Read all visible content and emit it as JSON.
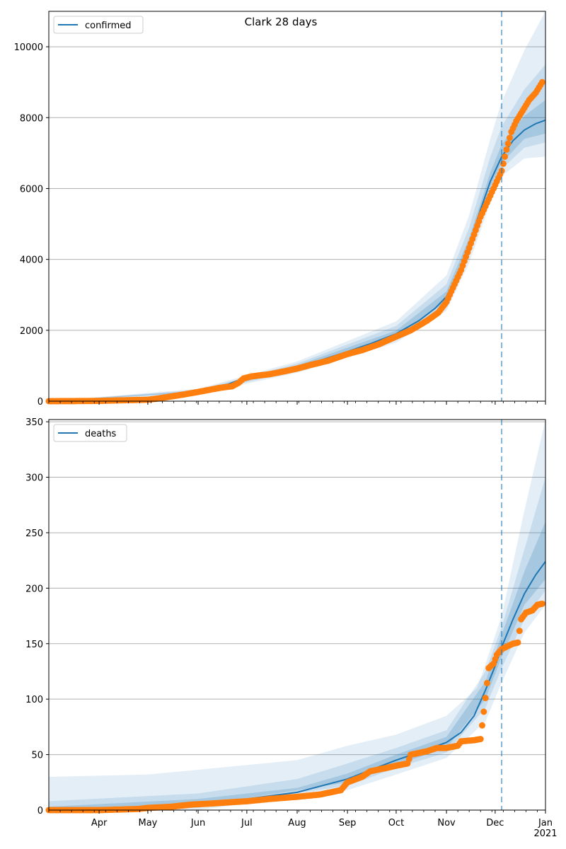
{
  "title": "Clark 28 days",
  "colors": {
    "model": "#1f77b4",
    "band": "#1f77b4",
    "observed": "#ff7f0e",
    "grid": "#b0b0b0",
    "vline": "#1f77b4"
  },
  "x_axis": {
    "start": "2020-03-01",
    "end": "2021-01-01",
    "month_ticks": [
      {
        "label": "Apr",
        "date": "2020-04-01"
      },
      {
        "label": "May",
        "date": "2020-05-01"
      },
      {
        "label": "Jun",
        "date": "2020-06-01"
      },
      {
        "label": "Jul",
        "date": "2020-07-01"
      },
      {
        "label": "Aug",
        "date": "2020-08-01"
      },
      {
        "label": "Sep",
        "date": "2020-09-01"
      },
      {
        "label": "Oct",
        "date": "2020-10-01"
      },
      {
        "label": "Nov",
        "date": "2020-11-01"
      },
      {
        "label": "Dec",
        "date": "2020-12-01"
      },
      {
        "label": "Jan",
        "date": "2021-01-01"
      }
    ],
    "year_label": "2021",
    "forecast_date": "2020-12-05"
  },
  "chart_data": [
    {
      "type": "line",
      "legend": "confirmed",
      "legend_position": "top-left",
      "grid": "y",
      "ylim": [
        0,
        11000
      ],
      "yticks": [
        0,
        2000,
        4000,
        6000,
        8000,
        10000
      ],
      "model_line": [
        [
          "2020-03-01",
          0
        ],
        [
          "2020-04-01",
          5
        ],
        [
          "2020-05-01",
          50
        ],
        [
          "2020-05-15",
          130
        ],
        [
          "2020-06-01",
          270
        ],
        [
          "2020-06-15",
          400
        ],
        [
          "2020-07-01",
          680
        ],
        [
          "2020-07-15",
          790
        ],
        [
          "2020-08-01",
          960
        ],
        [
          "2020-08-15",
          1150
        ],
        [
          "2020-09-01",
          1400
        ],
        [
          "2020-09-15",
          1620
        ],
        [
          "2020-10-01",
          1900
        ],
        [
          "2020-10-15",
          2270
        ],
        [
          "2020-10-25",
          2620
        ],
        [
          "2020-11-01",
          2950
        ],
        [
          "2020-11-08",
          3550
        ],
        [
          "2020-11-15",
          4400
        ],
        [
          "2020-11-22",
          5400
        ],
        [
          "2020-11-28",
          6200
        ],
        [
          "2020-12-05",
          6900
        ],
        [
          "2020-12-12",
          7350
        ],
        [
          "2020-12-19",
          7650
        ],
        [
          "2020-12-26",
          7830
        ],
        [
          "2021-01-01",
          7930
        ]
      ],
      "bands": [
        {
          "opacity": 0.12,
          "lower": [
            [
              "2020-03-01",
              0
            ],
            [
              "2020-06-01",
              200
            ],
            [
              "2020-08-01",
              800
            ],
            [
              "2020-10-01",
              1650
            ],
            [
              "2020-11-01",
              2550
            ],
            [
              "2020-11-15",
              3900
            ],
            [
              "2020-11-28",
              5600
            ],
            [
              "2020-12-05",
              6350
            ],
            [
              "2020-12-19",
              6850
            ],
            [
              "2021-01-01",
              6900
            ]
          ],
          "upper": [
            [
              "2020-03-01",
              0
            ],
            [
              "2020-06-01",
              350
            ],
            [
              "2020-08-01",
              1120
            ],
            [
              "2020-10-01",
              2250
            ],
            [
              "2020-11-01",
              3550
            ],
            [
              "2020-11-15",
              5250
            ],
            [
              "2020-11-28",
              7400
            ],
            [
              "2020-12-05",
              8450
            ],
            [
              "2020-12-19",
              9900
            ],
            [
              "2021-01-01",
              11000
            ]
          ]
        },
        {
          "opacity": 0.15,
          "lower": [
            [
              "2020-03-01",
              0
            ],
            [
              "2020-06-01",
              225
            ],
            [
              "2020-08-01",
              860
            ],
            [
              "2020-10-01",
              1740
            ],
            [
              "2020-11-01",
              2700
            ],
            [
              "2020-11-15",
              4100
            ],
            [
              "2020-11-28",
              5850
            ],
            [
              "2020-12-05",
              6550
            ],
            [
              "2020-12-19",
              7150
            ],
            [
              "2021-01-01",
              7300
            ]
          ],
          "upper": [
            [
              "2020-03-01",
              0
            ],
            [
              "2020-06-01",
              320
            ],
            [
              "2020-08-01",
              1060
            ],
            [
              "2020-10-01",
              2120
            ],
            [
              "2020-11-01",
              3300
            ],
            [
              "2020-11-15",
              4900
            ],
            [
              "2020-11-28",
              6900
            ],
            [
              "2020-12-05",
              7750
            ],
            [
              "2020-12-19",
              8800
            ],
            [
              "2021-01-01",
              9500
            ]
          ]
        },
        {
          "opacity": 0.2,
          "lower": [
            [
              "2020-03-01",
              0
            ],
            [
              "2020-06-01",
              245
            ],
            [
              "2020-08-01",
              910
            ],
            [
              "2020-10-01",
              1820
            ],
            [
              "2020-11-01",
              2830
            ],
            [
              "2020-11-15",
              4250
            ],
            [
              "2020-11-28",
              6050
            ],
            [
              "2020-12-05",
              6720
            ],
            [
              "2020-12-19",
              7400
            ],
            [
              "2021-01-01",
              7550
            ]
          ],
          "upper": [
            [
              "2020-03-01",
              0
            ],
            [
              "2020-06-01",
              295
            ],
            [
              "2020-08-01",
              1010
            ],
            [
              "2020-10-01",
              1990
            ],
            [
              "2020-11-01",
              3100
            ],
            [
              "2020-11-15",
              4600
            ],
            [
              "2020-11-28",
              6450
            ],
            [
              "2020-12-05",
              7250
            ],
            [
              "2020-12-19",
              8050
            ],
            [
              "2021-01-01",
              8500
            ]
          ]
        }
      ],
      "observed": [
        [
          "2020-03-01",
          0
        ],
        [
          "2020-03-15",
          2
        ],
        [
          "2020-04-01",
          8
        ],
        [
          "2020-04-15",
          25
        ],
        [
          "2020-05-01",
          40
        ],
        [
          "2020-05-08",
          80
        ],
        [
          "2020-05-15",
          130
        ],
        [
          "2020-05-22",
          180
        ],
        [
          "2020-06-01",
          260
        ],
        [
          "2020-06-08",
          320
        ],
        [
          "2020-06-15",
          380
        ],
        [
          "2020-06-22",
          420
        ],
        [
          "2020-06-26",
          520
        ],
        [
          "2020-06-29",
          640
        ],
        [
          "2020-07-04",
          700
        ],
        [
          "2020-07-15",
          760
        ],
        [
          "2020-07-25",
          850
        ],
        [
          "2020-08-01",
          920
        ],
        [
          "2020-08-10",
          1030
        ],
        [
          "2020-08-20",
          1140
        ],
        [
          "2020-09-01",
          1330
        ],
        [
          "2020-09-10",
          1440
        ],
        [
          "2020-09-20",
          1600
        ],
        [
          "2020-10-01",
          1820
        ],
        [
          "2020-10-10",
          2000
        ],
        [
          "2020-10-20",
          2270
        ],
        [
          "2020-10-27",
          2500
        ],
        [
          "2020-11-01",
          2800
        ],
        [
          "2020-11-05",
          3200
        ],
        [
          "2020-11-10",
          3700
        ],
        [
          "2020-11-14",
          4200
        ],
        [
          "2020-11-18",
          4700
        ],
        [
          "2020-11-22",
          5200
        ],
        [
          "2020-11-25",
          5500
        ],
        [
          "2020-11-29",
          5900
        ],
        [
          "2020-12-02",
          6200
        ],
        [
          "2020-12-05",
          6500
        ],
        [
          "2020-12-08",
          7100
        ],
        [
          "2020-12-11",
          7600
        ],
        [
          "2020-12-14",
          7900
        ],
        [
          "2020-12-18",
          8200
        ],
        [
          "2020-12-22",
          8500
        ],
        [
          "2020-12-26",
          8700
        ],
        [
          "2020-12-30",
          9000
        ]
      ]
    },
    {
      "type": "line",
      "legend": "deaths",
      "legend_position": "top-left",
      "grid": "y",
      "ylim": [
        0,
        352
      ],
      "yticks": [
        0,
        50,
        100,
        150,
        200,
        250,
        300,
        350
      ],
      "model_line": [
        [
          "2020-03-01",
          0
        ],
        [
          "2020-04-01",
          1
        ],
        [
          "2020-05-01",
          3
        ],
        [
          "2020-06-01",
          6
        ],
        [
          "2020-07-01",
          10
        ],
        [
          "2020-08-01",
          16
        ],
        [
          "2020-09-01",
          28
        ],
        [
          "2020-09-15",
          36
        ],
        [
          "2020-10-01",
          45
        ],
        [
          "2020-10-15",
          52
        ],
        [
          "2020-11-01",
          61
        ],
        [
          "2020-11-10",
          70
        ],
        [
          "2020-11-18",
          85
        ],
        [
          "2020-11-25",
          108
        ],
        [
          "2020-12-01",
          130
        ],
        [
          "2020-12-05",
          147
        ],
        [
          "2020-12-12",
          172
        ],
        [
          "2020-12-19",
          195
        ],
        [
          "2020-12-26",
          212
        ],
        [
          "2021-01-01",
          224
        ]
      ],
      "bands": [
        {
          "opacity": 0.12,
          "lower": [
            [
              "2020-03-01",
              0
            ],
            [
              "2020-06-01",
              0
            ],
            [
              "2020-09-01",
              18
            ],
            [
              "2020-10-01",
              32
            ],
            [
              "2020-11-01",
              47
            ],
            [
              "2020-11-25",
              80
            ],
            [
              "2020-12-05",
              115
            ],
            [
              "2020-12-19",
              160
            ],
            [
              "2021-01-01",
              185
            ]
          ],
          "upper": [
            [
              "2020-03-01",
              30
            ],
            [
              "2020-05-01",
              32
            ],
            [
              "2020-08-01",
              45
            ],
            [
              "2020-09-01",
              58
            ],
            [
              "2020-10-01",
              68
            ],
            [
              "2020-11-01",
              85
            ],
            [
              "2020-11-20",
              110
            ],
            [
              "2020-12-05",
              175
            ],
            [
              "2020-12-19",
              270
            ],
            [
              "2021-01-01",
              352
            ]
          ]
        },
        {
          "opacity": 0.15,
          "lower": [
            [
              "2020-03-01",
              0
            ],
            [
              "2020-06-01",
              2
            ],
            [
              "2020-09-01",
              22
            ],
            [
              "2020-10-01",
              38
            ],
            [
              "2020-11-01",
              52
            ],
            [
              "2020-11-25",
              92
            ],
            [
              "2020-12-05",
              128
            ],
            [
              "2020-12-19",
              172
            ],
            [
              "2021-01-01",
              198
            ]
          ],
          "upper": [
            [
              "2020-03-01",
              8
            ],
            [
              "2020-06-01",
              15
            ],
            [
              "2020-08-01",
              28
            ],
            [
              "2020-09-01",
              42
            ],
            [
              "2020-10-01",
              56
            ],
            [
              "2020-11-01",
              72
            ],
            [
              "2020-11-25",
              125
            ],
            [
              "2020-12-05",
              165
            ],
            [
              "2020-12-19",
              235
            ],
            [
              "2021-01-01",
              300
            ]
          ]
        },
        {
          "opacity": 0.2,
          "lower": [
            [
              "2020-03-01",
              0
            ],
            [
              "2020-06-01",
              4
            ],
            [
              "2020-09-01",
              25
            ],
            [
              "2020-10-01",
              41
            ],
            [
              "2020-11-01",
              56
            ],
            [
              "2020-11-25",
              100
            ],
            [
              "2020-12-05",
              138
            ],
            [
              "2020-12-19",
              185
            ],
            [
              "2021-01-01",
              208
            ]
          ],
          "upper": [
            [
              "2020-03-01",
              3
            ],
            [
              "2020-06-01",
              10
            ],
            [
              "2020-08-01",
              20
            ],
            [
              "2020-09-01",
              33
            ],
            [
              "2020-10-01",
              50
            ],
            [
              "2020-11-01",
              66
            ],
            [
              "2020-11-25",
              116
            ],
            [
              "2020-12-05",
              158
            ],
            [
              "2020-12-19",
              215
            ],
            [
              "2021-01-01",
              260
            ]
          ]
        }
      ],
      "observed": [
        [
          "2020-03-01",
          0
        ],
        [
          "2020-04-01",
          0
        ],
        [
          "2020-04-25",
          1
        ],
        [
          "2020-05-01",
          2
        ],
        [
          "2020-05-15",
          3
        ],
        [
          "2020-05-28",
          5
        ],
        [
          "2020-06-10",
          6
        ],
        [
          "2020-06-20",
          7
        ],
        [
          "2020-07-01",
          8
        ],
        [
          "2020-07-15",
          10
        ],
        [
          "2020-08-01",
          12
        ],
        [
          "2020-08-15",
          14
        ],
        [
          "2020-08-28",
          18
        ],
        [
          "2020-09-01",
          25
        ],
        [
          "2020-09-10",
          30
        ],
        [
          "2020-09-15",
          35
        ],
        [
          "2020-09-25",
          38
        ],
        [
          "2020-10-01",
          40
        ],
        [
          "2020-10-08",
          42
        ],
        [
          "2020-10-10",
          50
        ],
        [
          "2020-10-20",
          53
        ],
        [
          "2020-10-26",
          56
        ],
        [
          "2020-11-01",
          56
        ],
        [
          "2020-11-08",
          58
        ],
        [
          "2020-11-10",
          62
        ],
        [
          "2020-11-18",
          63
        ],
        [
          "2020-11-22",
          64
        ],
        [
          "2020-11-25",
          101
        ],
        [
          "2020-11-27",
          128
        ],
        [
          "2020-11-30",
          132
        ],
        [
          "2020-12-02",
          140
        ],
        [
          "2020-12-05",
          145
        ],
        [
          "2020-12-09",
          148
        ],
        [
          "2020-12-12",
          150
        ],
        [
          "2020-12-15",
          151
        ],
        [
          "2020-12-17",
          172
        ],
        [
          "2020-12-20",
          178
        ],
        [
          "2020-12-24",
          180
        ],
        [
          "2020-12-27",
          185
        ],
        [
          "2020-12-30",
          186
        ]
      ]
    }
  ]
}
